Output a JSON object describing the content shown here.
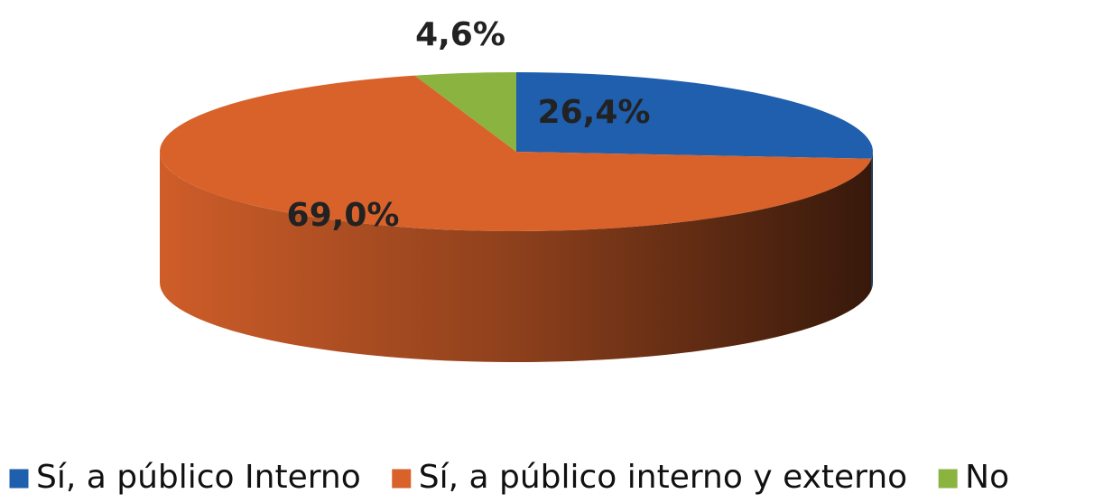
{
  "chart_data": {
    "type": "pie3d",
    "categories": [
      "Sí, a público Interno",
      "Sí, a público interno y externo",
      "No"
    ],
    "values": [
      26.4,
      69.0,
      4.6
    ],
    "value_labels": [
      "26,4%",
      "69,0%",
      "4,6%"
    ],
    "colors": [
      "#1f5fad",
      "#d9622b",
      "#8ab33f"
    ],
    "legend": "bottom"
  }
}
